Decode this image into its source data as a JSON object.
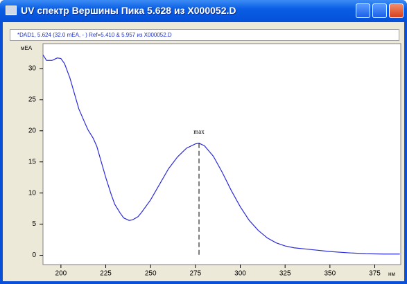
{
  "window": {
    "title": "UV спектр Вершины Пика 5.628 из X000052.D"
  },
  "chart_data": {
    "type": "line",
    "subtitle": "*DAD1, 5.624 (32.0 mEA, - ) Ref=5.410 & 5.957 из X000052.D",
    "y_label": "мEA",
    "x_label": "нм",
    "x": [
      190,
      192,
      195,
      198,
      200,
      202,
      205,
      208,
      210,
      213,
      215,
      218,
      220,
      222,
      225,
      228,
      230,
      233,
      235,
      238,
      240,
      243,
      245,
      250,
      255,
      260,
      265,
      270,
      275,
      277,
      280,
      285,
      290,
      295,
      300,
      305,
      310,
      315,
      320,
      325,
      330,
      340,
      350,
      360,
      370,
      380,
      389
    ],
    "series": [
      {
        "name": "DAD1",
        "color": "#2b2bd8",
        "values": [
          32.2,
          31.3,
          31.3,
          31.7,
          31.6,
          30.8,
          28.5,
          25.5,
          23.5,
          21.5,
          20.2,
          18.8,
          17.5,
          15.5,
          12.5,
          9.8,
          8.2,
          6.8,
          6.0,
          5.6,
          5.7,
          6.2,
          6.9,
          8.9,
          11.4,
          13.9,
          15.8,
          17.2,
          17.9,
          18.0,
          17.6,
          15.9,
          13.3,
          10.4,
          7.8,
          5.6,
          4.0,
          2.8,
          2.0,
          1.5,
          1.2,
          0.9,
          0.6,
          0.4,
          0.25,
          0.2,
          0.2
        ]
      }
    ],
    "annotation": {
      "text": "max",
      "x": 277
    },
    "xlim": [
      190,
      389.5
    ],
    "ylim": [
      -1.5,
      34
    ],
    "xticks": [
      200,
      225,
      250,
      275,
      300,
      325,
      350,
      375
    ],
    "yticks": [
      0,
      5,
      10,
      15,
      20,
      25,
      30
    ]
  }
}
